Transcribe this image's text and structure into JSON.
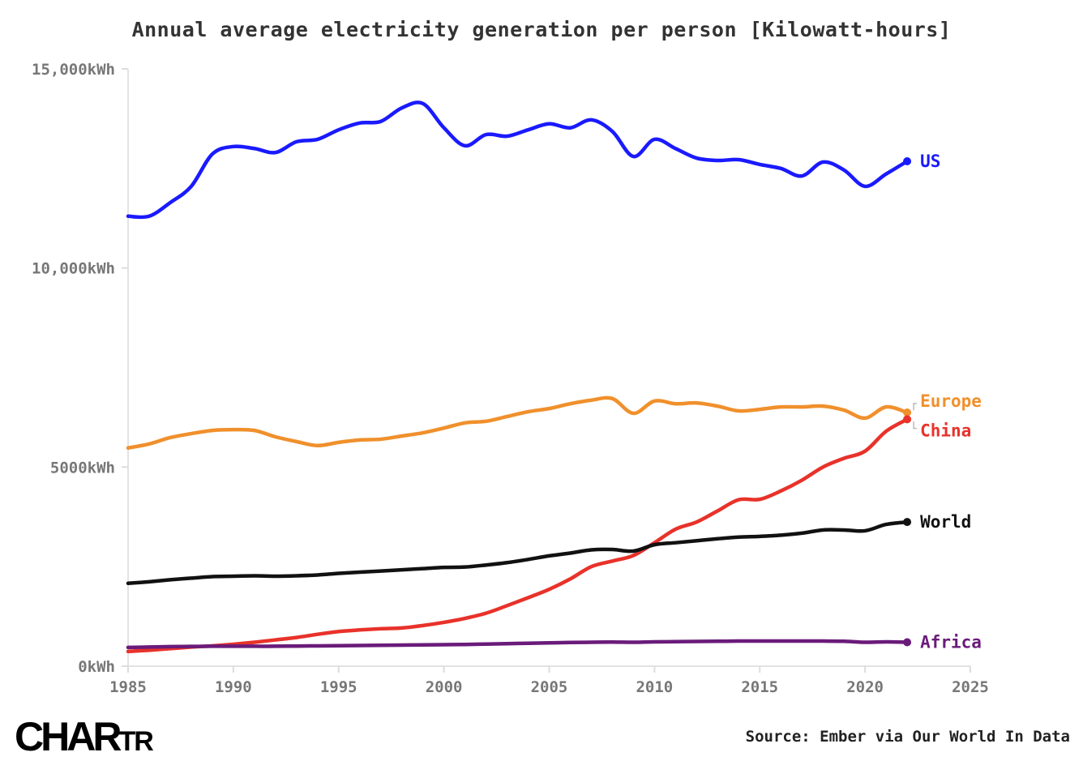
{
  "chart_data": {
    "type": "line",
    "title": "",
    "subtitle": "Annual average electricity generation per person [Kilowatt-hours]",
    "xlabel": "",
    "ylabel": "",
    "xlim": [
      1985,
      2025
    ],
    "ylim": [
      0,
      15000
    ],
    "x_ticks": [
      "1985",
      "1990",
      "1995",
      "2000",
      "2005",
      "2010",
      "2015",
      "2020",
      "2025"
    ],
    "y_ticks": [
      "0kWh",
      "5000kWh",
      "10,000kWh",
      "15,000kWh"
    ],
    "x": [
      1985,
      1986,
      1987,
      1988,
      1989,
      1990,
      1991,
      1992,
      1993,
      1994,
      1995,
      1996,
      1997,
      1998,
      1999,
      2000,
      2001,
      2002,
      2003,
      2004,
      2005,
      2006,
      2007,
      2008,
      2009,
      2010,
      2011,
      2012,
      2013,
      2014,
      2015,
      2016,
      2017,
      2018,
      2019,
      2020,
      2021,
      2022
    ],
    "series": [
      {
        "name": "US",
        "color": "#1a1aff",
        "values": [
          11300,
          11300,
          11640,
          12050,
          12860,
          13050,
          13000,
          12900,
          13170,
          13230,
          13470,
          13640,
          13680,
          14020,
          14130,
          13520,
          13070,
          13350,
          13310,
          13470,
          13620,
          13520,
          13720,
          13430,
          12800,
          13230,
          13000,
          12760,
          12700,
          12720,
          12600,
          12500,
          12310,
          12660,
          12460,
          12050,
          12360,
          12680
        ]
      },
      {
        "name": "Europe",
        "color": "#f0902c",
        "values": [
          5480,
          5580,
          5740,
          5840,
          5920,
          5940,
          5920,
          5760,
          5640,
          5540,
          5620,
          5680,
          5700,
          5780,
          5860,
          5980,
          6110,
          6150,
          6270,
          6390,
          6470,
          6590,
          6680,
          6720,
          6350,
          6660,
          6590,
          6610,
          6530,
          6410,
          6450,
          6510,
          6510,
          6530,
          6430,
          6230,
          6510,
          6370
        ]
      },
      {
        "name": "China",
        "color": "#e8322a",
        "values": [
          370,
          400,
          440,
          480,
          510,
          550,
          600,
          660,
          720,
          800,
          870,
          910,
          940,
          960,
          1020,
          1100,
          1200,
          1330,
          1520,
          1720,
          1930,
          2190,
          2500,
          2640,
          2780,
          3100,
          3440,
          3620,
          3900,
          4180,
          4190,
          4400,
          4670,
          5000,
          5220,
          5400,
          5900,
          6200
        ]
      },
      {
        "name": "World",
        "color": "#111111",
        "values": [
          2080,
          2120,
          2170,
          2210,
          2250,
          2260,
          2270,
          2260,
          2270,
          2290,
          2330,
          2360,
          2390,
          2420,
          2450,
          2480,
          2490,
          2540,
          2600,
          2680,
          2770,
          2840,
          2920,
          2930,
          2890,
          3050,
          3100,
          3150,
          3200,
          3240,
          3260,
          3290,
          3340,
          3420,
          3420,
          3400,
          3560,
          3620
        ]
      },
      {
        "name": "Africa",
        "color": "#6a1b7a",
        "values": [
          470,
          480,
          490,
          495,
          500,
          500,
          500,
          500,
          505,
          510,
          515,
          520,
          525,
          530,
          535,
          540,
          545,
          555,
          565,
          575,
          585,
          595,
          600,
          605,
          600,
          610,
          615,
          620,
          625,
          630,
          630,
          630,
          630,
          630,
          625,
          600,
          610,
          600
        ]
      }
    ],
    "legend": "inline-right-end-labels"
  },
  "footer": {
    "logo": "CHARTR",
    "source": "Source: Ember via Our World In Data"
  }
}
